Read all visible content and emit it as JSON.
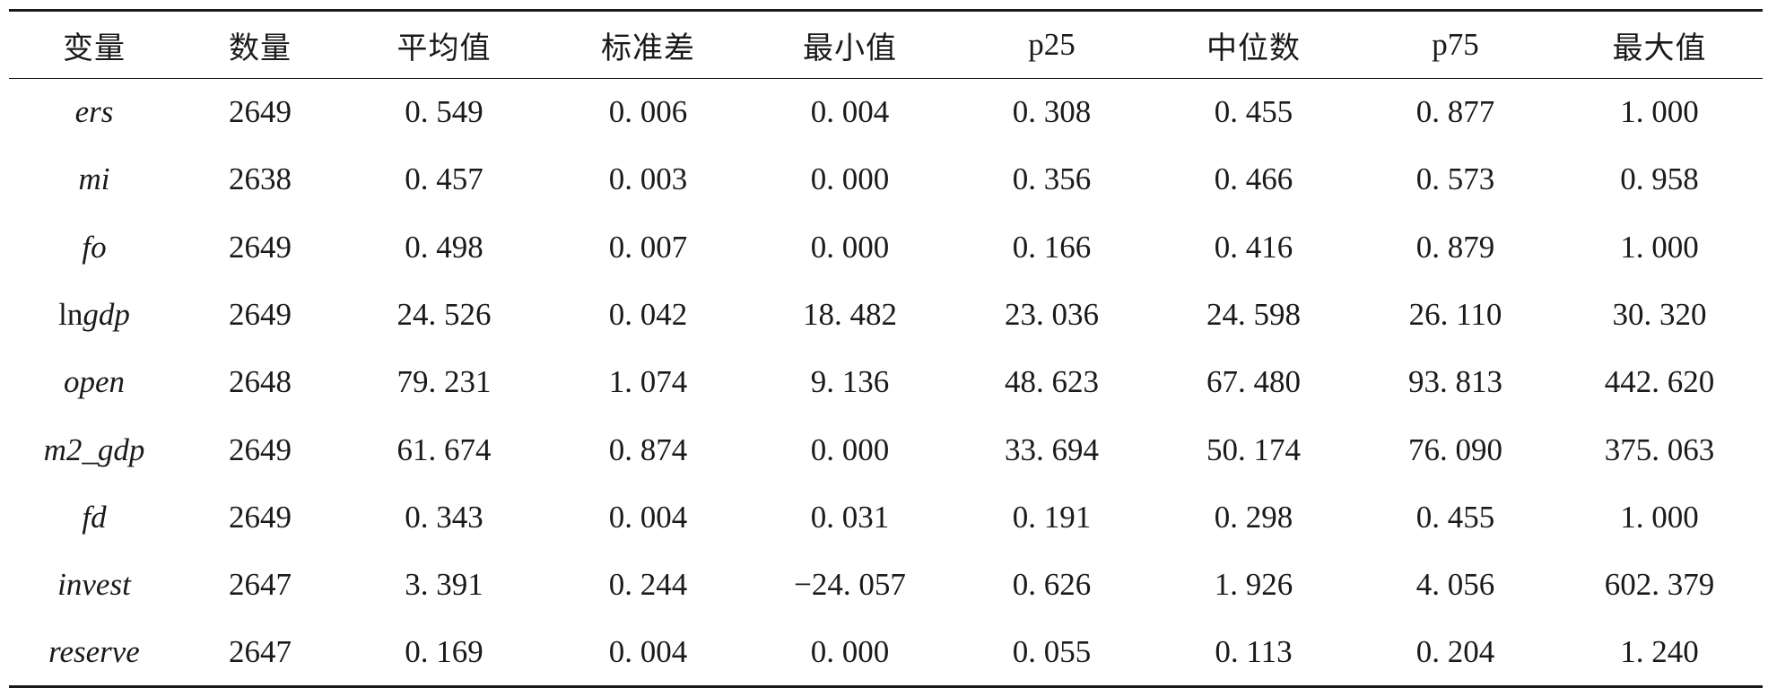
{
  "table": {
    "headers": [
      "变量",
      "数量",
      "平均值",
      "标准差",
      "最小值",
      "p25",
      "中位数",
      "p75",
      "最大值"
    ],
    "rows": [
      {
        "prefix": "",
        "name": "ers",
        "values": [
          "2649",
          "0. 549",
          "0. 006",
          "0. 004",
          "0. 308",
          "0. 455",
          "0. 877",
          "1. 000"
        ]
      },
      {
        "prefix": "",
        "name": "mi",
        "values": [
          "2638",
          "0. 457",
          "0. 003",
          "0. 000",
          "0. 356",
          "0. 466",
          "0. 573",
          "0. 958"
        ]
      },
      {
        "prefix": "",
        "name": "fo",
        "values": [
          "2649",
          "0. 498",
          "0. 007",
          "0. 000",
          "0. 166",
          "0. 416",
          "0. 879",
          "1. 000"
        ]
      },
      {
        "prefix": "ln",
        "name": "gdp",
        "values": [
          "2649",
          "24. 526",
          "0. 042",
          "18. 482",
          "23. 036",
          "24. 598",
          "26. 110",
          "30. 320"
        ]
      },
      {
        "prefix": "",
        "name": "open",
        "values": [
          "2648",
          "79. 231",
          "1. 074",
          "9. 136",
          "48. 623",
          "67. 480",
          "93. 813",
          "442. 620"
        ]
      },
      {
        "prefix": "",
        "name": "m2_gdp",
        "values": [
          "2649",
          "61. 674",
          "0. 874",
          "0. 000",
          "33. 694",
          "50. 174",
          "76. 090",
          "375. 063"
        ]
      },
      {
        "prefix": "",
        "name": "fd",
        "values": [
          "2649",
          "0. 343",
          "0. 004",
          "0. 031",
          "0. 191",
          "0. 298",
          "0. 455",
          "1. 000"
        ]
      },
      {
        "prefix": "",
        "name": "invest",
        "values": [
          "2647",
          "3. 391",
          "0. 244",
          "−24. 057",
          "0. 626",
          "1. 926",
          "4. 056",
          "602. 379"
        ]
      },
      {
        "prefix": "",
        "name": "reserve",
        "values": [
          "2647",
          "0. 169",
          "0. 004",
          "0. 000",
          "0. 055",
          "0. 113",
          "0. 204",
          "1. 240"
        ]
      }
    ]
  }
}
